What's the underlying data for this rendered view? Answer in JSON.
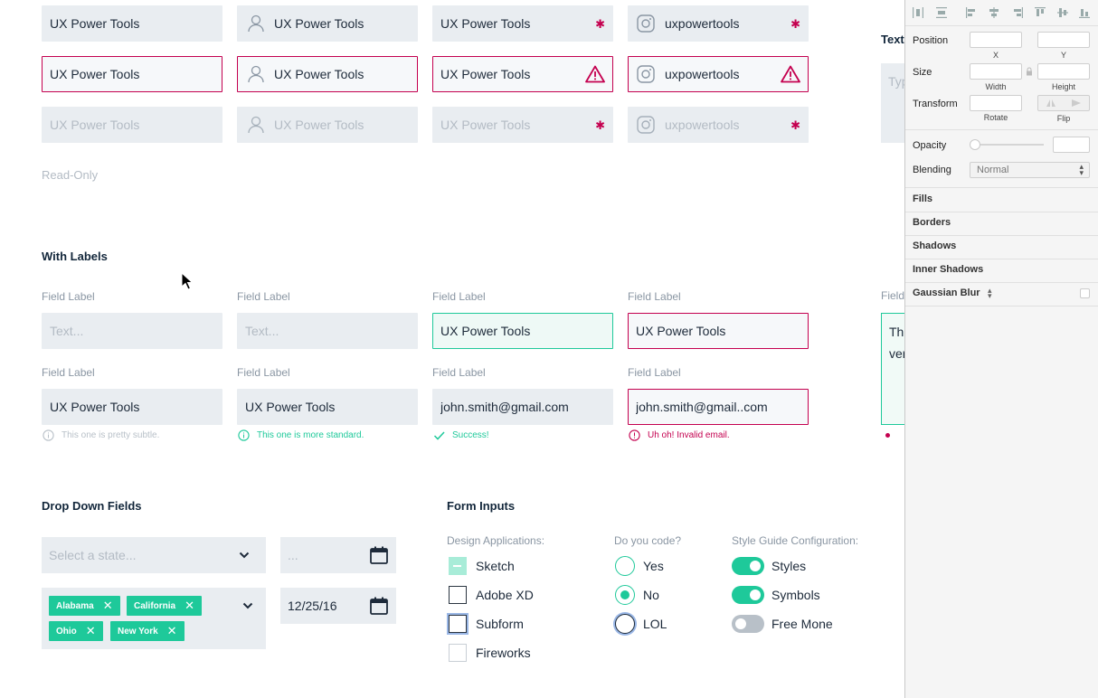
{
  "rows": {
    "r1": [
      "UX Power Tools",
      "UX Power Tools",
      "UX Power Tools",
      "uxpowertools"
    ],
    "r2": [
      "UX Power Tools",
      "UX Power Tools",
      "UX Power Tools",
      "uxpowertools"
    ],
    "r3": [
      "UX Power Tools",
      "UX Power Tools",
      "UX Power Tools",
      "uxpowertools"
    ]
  },
  "read_only_label": "Read-Only",
  "right_clipped": {
    "title": "Text",
    "placeholder": "Typ",
    "field_label": "Field",
    "textarea_line1": "Thi",
    "textarea_line2": "ver"
  },
  "with_labels": {
    "title": "With Labels",
    "field_label": "Field Label",
    "row1": {
      "f1_placeholder": "Text...",
      "f2_placeholder": "Text...",
      "f3_value": "UX Power Tools",
      "f4_value": "UX Power Tools"
    },
    "row2": {
      "f1_value": "UX Power Tools",
      "f2_value": "UX Power Tools",
      "f3_value": "john.smith@gmail.com",
      "f4_value": "john.smith@gmail..com"
    },
    "help": {
      "subtle": "This one is pretty subtle.",
      "standard": "This one is more standard.",
      "success": "Success!",
      "error": "Uh oh! Invalid email."
    }
  },
  "dropdowns": {
    "title": "Drop Down Fields",
    "state_placeholder": "Select a state...",
    "date_placeholder": "...",
    "chips": [
      "Alabama",
      "California",
      "Ohio",
      "New York"
    ],
    "date_value": "12/25/16"
  },
  "form_inputs": {
    "title": "Form Inputs",
    "design_label": "Design Applications:",
    "design_options": [
      "Sketch",
      "Adobe XD",
      "Subform",
      "Fireworks"
    ],
    "code_label": "Do you code?",
    "code_options": [
      "Yes",
      "No",
      "LOL"
    ],
    "config_label": "Style Guide Configuration:",
    "config_options": [
      "Styles",
      "Symbols",
      "Free Mone"
    ]
  },
  "inspector": {
    "position": "Position",
    "x": "X",
    "y": "Y",
    "size": "Size",
    "width": "Width",
    "height": "Height",
    "transform": "Transform",
    "rotate": "Rotate",
    "flip": "Flip",
    "opacity": "Opacity",
    "blending": "Blending",
    "blending_value": "Normal",
    "sections": [
      "Fills",
      "Borders",
      "Shadows",
      "Inner Shadows",
      "Gaussian Blur"
    ]
  },
  "colors": {
    "accent": "#1ec99a",
    "error": "#c4004f",
    "field_bg": "#e9edf1",
    "text": "#1d2a3a"
  }
}
